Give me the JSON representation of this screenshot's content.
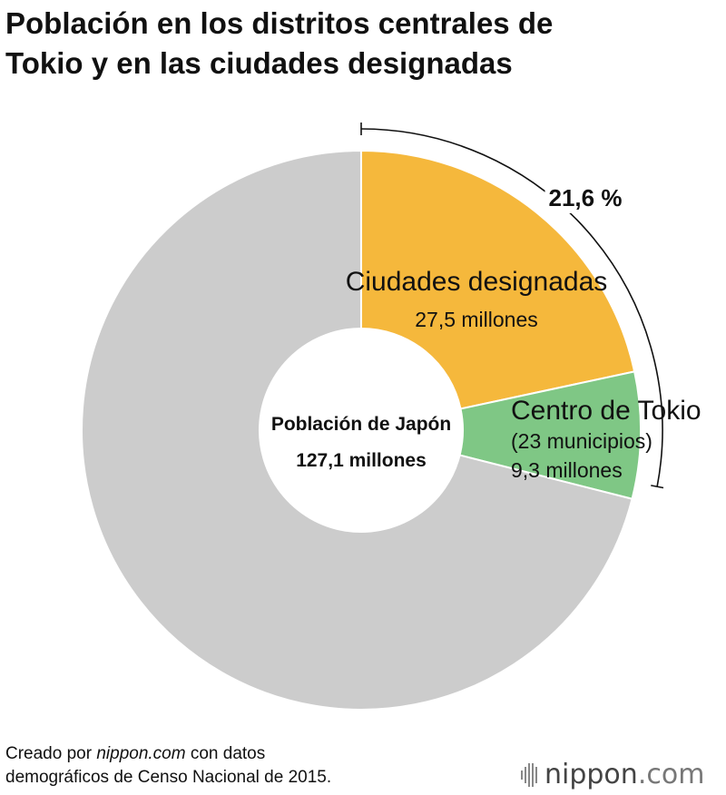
{
  "title": {
    "line1": "Población en los distritos centrales de",
    "line2": "Tokio y en las ciudades designadas"
  },
  "chart_data": {
    "type": "pie",
    "donut": true,
    "center_label": "Población de Japón",
    "center_value": "127,1 millones",
    "total": 127.1,
    "slices": [
      {
        "key": "designated",
        "label": "Ciudades designadas",
        "value_label": "27,5 millones",
        "value": 27.5,
        "color": "#F5B83C"
      },
      {
        "key": "tokyo",
        "label": "Centro de Tokio",
        "sublabel": "(23 municipios)",
        "value_label": "9,3 millones",
        "value": 9.3,
        "color": "#7FC785"
      },
      {
        "key": "rest",
        "label": "",
        "value": 90.3,
        "color": "#CCCCCC"
      }
    ],
    "bracket_label": "21,6 %",
    "bracket_value": 21.6
  },
  "footer": {
    "prefix": "Creado por ",
    "source": "nippon.com",
    "suffix": " con datos",
    "line2": "demográficos de Censo Nacional de 2015."
  },
  "logo": {
    "name": "nippon",
    "domain": ".com"
  }
}
